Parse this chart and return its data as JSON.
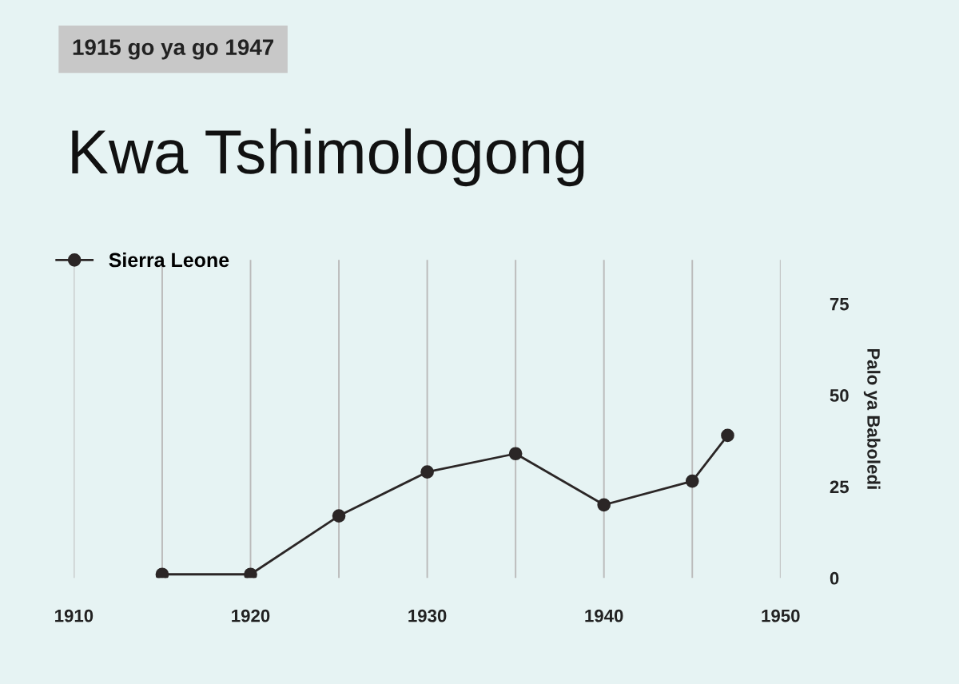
{
  "chart_data": {
    "type": "line",
    "subtitle": "1915 go ya go 1947",
    "title": "Kwa Tshimologong",
    "ylabel": "Palo ya Baboledi",
    "x": [
      1915,
      1920,
      1925,
      1930,
      1935,
      1940,
      1945,
      1947
    ],
    "series": [
      {
        "name": "Sierra Leone",
        "color": "#2b2626",
        "values": [
          1,
          1,
          17,
          29,
          34,
          20,
          26.5,
          39
        ]
      }
    ],
    "xlim": [
      1910,
      1950
    ],
    "xticks": [
      1910,
      {
        "value": 1915,
        "label": null
      },
      1920,
      {
        "value": 1925,
        "label": null
      },
      1930,
      {
        "value": 1935,
        "label": null
      },
      1940,
      {
        "value": 1945,
        "label": null
      },
      1950
    ],
    "ylim": [
      0,
      87
    ],
    "yticks": [
      0,
      25,
      50,
      75
    ],
    "grid": "x",
    "legend": "top left",
    "marker": "circle",
    "line_style": "solid"
  }
}
